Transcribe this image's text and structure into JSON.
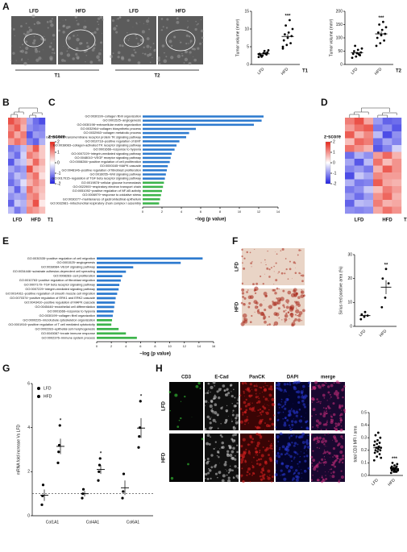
{
  "panel_labels": [
    "A",
    "B",
    "C",
    "D",
    "E",
    "F",
    "G",
    "H"
  ],
  "micrographs": {
    "A_T1": {
      "labels": [
        "LFD",
        "HFD"
      ],
      "caption": "T1"
    },
    "A_T2": {
      "labels": [
        "LFD",
        "HFD"
      ],
      "caption": "T2"
    },
    "F": {
      "labels": [
        "LFD",
        "HFD"
      ]
    },
    "H": {
      "columns": [
        "CD3",
        "E-Cad",
        "PanCK",
        "DAPI",
        "merge"
      ],
      "rows": [
        "LFD",
        "HFD"
      ]
    }
  },
  "chart_data": [
    {
      "type": "dot",
      "ylabel": "Tumor volume (mm³)",
      "categories": [
        "LFD",
        "HFD"
      ],
      "caption": "T1",
      "significance": "***",
      "points": [
        [
          2.1,
          2.5,
          2.8,
          3.0,
          3.2,
          3.4,
          2.6,
          3.8,
          4.0,
          2.2,
          3.1,
          2.9
        ],
        [
          4.5,
          5.5,
          6.0,
          6.8,
          7.5,
          8.0,
          8.5,
          9.0,
          10.0,
          11.0,
          12.5,
          5.0
        ]
      ],
      "values": [
        3.0,
        7.9
      ],
      "errors": [
        0.2,
        0.7
      ],
      "ylim": [
        0,
        15
      ],
      "yticks": [
        0,
        5,
        10,
        15
      ],
      "color": "#000000"
    },
    {
      "type": "dot",
      "ylabel": "Tumor volume (mm³)",
      "categories": [
        "LFD",
        "HFD"
      ],
      "caption": "T2",
      "significance": "***",
      "points": [
        [
          25,
          30,
          35,
          40,
          42,
          45,
          50,
          55,
          60,
          70,
          38
        ],
        [
          70,
          80,
          90,
          100,
          110,
          115,
          120,
          130,
          140,
          150,
          160
        ]
      ],
      "values": [
        44.5,
        115
      ],
      "errors": [
        4,
        9
      ],
      "ylim": [
        0,
        200
      ],
      "yticks": [
        0,
        50,
        100,
        150,
        200
      ],
      "color": "#000000"
    },
    {
      "type": "heatmap",
      "group_labels": [
        "LFD",
        "HFD"
      ],
      "caption": "T1",
      "colormap": [
        "#2020e0",
        "#ffffff",
        "#e6261a"
      ],
      "colorbar": {
        "label": "z-score",
        "lim": [
          -2,
          2
        ],
        "ticks": [
          2,
          1,
          0,
          -1,
          -2
        ]
      },
      "values": [
        [
          1.6,
          1.2,
          0.9,
          -0.8,
          -1.3,
          -1.6
        ],
        [
          1.1,
          1.5,
          0.7,
          -1.0,
          -1.2,
          -1.1
        ],
        [
          1.4,
          0.8,
          1.2,
          -1.5,
          -0.9,
          -1.0
        ],
        [
          0.9,
          1.3,
          1.0,
          -1.1,
          -1.4,
          -0.7
        ],
        [
          -1.2,
          -1.0,
          -0.6,
          0.8,
          1.5,
          0.5
        ],
        [
          -0.9,
          -1.3,
          -0.4,
          1.2,
          0.9,
          0.5
        ],
        [
          -1.5,
          -0.7,
          -0.5,
          0.6,
          1.4,
          0.7
        ],
        [
          -0.8,
          -1.1,
          -0.9,
          1.6,
          0.7,
          0.5
        ],
        [
          -1.1,
          -0.6,
          -0.8,
          0.9,
          1.3,
          0.3
        ],
        [
          -1.3,
          -0.9,
          -0.3,
          0.7,
          1.1,
          0.7
        ],
        [
          -0.7,
          -1.4,
          -0.6,
          1.3,
          0.8,
          0.6
        ],
        [
          -1.0,
          -0.8,
          -0.9,
          1.0,
          1.2,
          0.5
        ],
        [
          -1.4,
          -0.5,
          -0.7,
          0.8,
          1.6,
          0.2
        ],
        [
          -0.6,
          -1.2,
          -0.8,
          1.1,
          0.9,
          0.6
        ]
      ]
    },
    {
      "type": "hbar",
      "xlabel": "−log (p value)",
      "xlim": [
        0,
        14
      ],
      "xticks": [
        0,
        2,
        4,
        6,
        8,
        10,
        12,
        14
      ],
      "categories": [
        "GO:0030199~collagen fibril organization",
        "GO:0001525~angiogenesis",
        "GO:0030198~extracellular matrix organization",
        "GO:0032964~collagen biosynthetic process",
        "GO:0032963~collagen metabolic process",
        "GO:0007169~transmembrane receptor protein TK signaling pathway",
        "GO:0010718~positive regulation of EMT",
        "GO:0038083~collagen-activated TK receptor signaling pathway",
        "GO:0001666~response to hypoxia",
        "GO:0007229~integrin-mediated signaling pathway",
        "GO:0048010~VEGF receptor signaling pathway",
        "GO:0008284~positive regulation of cell proliferation",
        "GO:0000165~MAPK cascade",
        "GO:0048146~positive regulation of fibroblast proliferation",
        "GO:0016055~Wnt signaling pathway",
        "GO:0017015~regulation of TGF beta receptor signaling pathway",
        "GO:0019878~cellular glucose homeostasis",
        "GO:0022900~respiratory electron transport chain",
        "GO:0051092~positive regulation of NF-kB activity",
        "GO:0006979~response to oxidative stress",
        "GO:0030277~maintenance of gastrointestinal epithelium",
        "GO:0032981~mitochondrial respiratory chain complex I assembly"
      ],
      "values": [
        12.5,
        12.3,
        11.5,
        5.5,
        4.8,
        4.5,
        3.8,
        3.5,
        3.3,
        3.0,
        2.9,
        2.8,
        2.6,
        2.5,
        2.4,
        2.3,
        2.2,
        2.1,
        2.0,
        1.9,
        1.8,
        1.7
      ],
      "colors": [
        "#2e7bcf",
        "#2e7bcf",
        "#2e7bcf",
        "#2e7bcf",
        "#2e7bcf",
        "#2e7bcf",
        "#2e7bcf",
        "#2e7bcf",
        "#2e7bcf",
        "#2e7bcf",
        "#2e7bcf",
        "#2e7bcf",
        "#2e7bcf",
        "#2e7bcf",
        "#2e7bcf",
        "#2e7bcf",
        "#3cb44b",
        "#3cb44b",
        "#3cb44b",
        "#3cb44b",
        "#3cb44b",
        "#3cb44b"
      ]
    },
    {
      "type": "heatmap",
      "group_labels": [
        "LFD",
        "HFD"
      ],
      "caption": "T2",
      "colormap": [
        "#2020e0",
        "#ffffff",
        "#e6261a"
      ],
      "colorbar": {
        "label": "z-score",
        "lim": [
          -2,
          2
        ],
        "ticks": [
          2,
          1,
          0,
          -1,
          -2
        ]
      },
      "values": [
        [
          1.2,
          1.6,
          0.8,
          -0.9,
          -1.4,
          -1.3
        ],
        [
          0.9,
          1.3,
          1.5,
          -1.2,
          -1.0,
          -1.5
        ],
        [
          1.5,
          0.7,
          1.1,
          -0.6,
          -1.6,
          -1.0
        ],
        [
          0.6,
          1.4,
          1.2,
          -1.3,
          -0.8,
          -1.1
        ],
        [
          1.3,
          1.0,
          0.7,
          -1.5,
          -1.1,
          -0.4
        ],
        [
          -1.3,
          -0.7,
          -1.0,
          0.9,
          1.4,
          0.7
        ],
        [
          -0.8,
          -1.5,
          -0.6,
          1.3,
          0.6,
          1.0
        ],
        [
          -1.1,
          -0.9,
          -1.2,
          0.7,
          1.5,
          1.0
        ],
        [
          -1.6,
          -0.5,
          -0.8,
          1.1,
          0.9,
          0.9
        ],
        [
          -0.7,
          -1.2,
          -1.1,
          1.5,
          0.8,
          0.7
        ],
        [
          -1.2,
          -1.0,
          -0.5,
          0.6,
          1.2,
          0.9
        ],
        [
          -0.9,
          -1.3,
          -0.9,
          1.0,
          1.4,
          0.7
        ],
        [
          -1.4,
          -0.6,
          -0.7,
          1.2,
          0.7,
          0.8
        ],
        [
          -1.0,
          -1.1,
          -1.0,
          0.8,
          1.3,
          1.0
        ]
      ]
    },
    {
      "type": "hbar",
      "xlabel": "−log (p value)",
      "xlim": [
        0,
        16
      ],
      "xticks": [
        0,
        2,
        4,
        6,
        8,
        10,
        12,
        14,
        16
      ],
      "categories": [
        "GO:0030335~positive regulation of cell migration",
        "GO:0001525~angiogenesis",
        "GO:0038084~VEGF signaling pathway",
        "GO:0034446~substrate adhesion-dependent cell spreading",
        "GO:0008283~cell proliferation",
        "GO:0010763~positive regulation of fibroblast migration",
        "GO:0007179~TGF beta receptor signaling pathway",
        "GO:0007229~integrin-mediated signaling pathway",
        "GO:0014911~positive regulation of smooth muscle cell migration",
        "GO:0070374~positive regulation of ERK1 and ERK2 cascade",
        "GO:0043410~positive regulation of MAPK cascade",
        "GO:0045446~endothelial cell differentiation",
        "GO:0001666~response to hypoxia",
        "GO:0030199~collagen fibril organization",
        "GO:0000226~microtubule cytoskeleton organization",
        "GO:0001916~positive regulation of T cell mediated cytotoxicity",
        "GO:0002283~epithelial cell morphogenesis",
        "GO:0045087~innate immune response",
        "GO:0002376~immune system process"
      ],
      "values": [
        14.5,
        11.5,
        5.0,
        4.0,
        3.5,
        3.3,
        3.1,
        3.0,
        2.8,
        2.6,
        2.5,
        2.4,
        2.3,
        2.2,
        2.1,
        2.0,
        3.0,
        4.0,
        5.5
      ],
      "colors": [
        "#2e7bcf",
        "#2e7bcf",
        "#2e7bcf",
        "#2e7bcf",
        "#2e7bcf",
        "#2e7bcf",
        "#2e7bcf",
        "#2e7bcf",
        "#2e7bcf",
        "#2e7bcf",
        "#2e7bcf",
        "#2e7bcf",
        "#2e7bcf",
        "#2e7bcf",
        "#3cb44b",
        "#3cb44b",
        "#3cb44b",
        "#3cb44b",
        "#3cb44b"
      ]
    },
    {
      "type": "dot",
      "ylabel": "Sirius red positive area (%)",
      "categories": [
        "LFD",
        "HFD"
      ],
      "significance": "**",
      "points": [
        [
          3,
          4,
          4.5,
          5,
          6
        ],
        [
          8,
          12,
          18,
          20,
          24
        ]
      ],
      "values": [
        4.5,
        16.4
      ],
      "errors": [
        0.5,
        2.9
      ],
      "ylim": [
        0,
        30
      ],
      "yticks": [
        0,
        10,
        20,
        30
      ],
      "color": "#000000"
    },
    {
      "type": "grouped_dot",
      "ylabel": "mRNA fold increase Vs LFD",
      "categories": [
        "Col1A1",
        "Col4A1",
        "Col6A1"
      ],
      "significance": "*",
      "reference_line": 1,
      "ylim": [
        0,
        6
      ],
      "yticks": [
        0,
        2,
        4,
        6
      ],
      "legend": "top-left",
      "series": [
        {
          "name": "LFD",
          "color": "#000000",
          "points": [
            [
              0.5,
              0.9,
              1.4
            ],
            [
              0.8,
              1.0,
              1.2
            ],
            [
              0.8,
              1.1,
              1.9
            ]
          ],
          "values": [
            0.93,
            1.0,
            1.27
          ],
          "errors": [
            0.26,
            0.12,
            0.33
          ]
        },
        {
          "name": "HFD",
          "color": "#000000",
          "points": [
            [
              2.4,
              2.9,
              3.2,
              4.1
            ],
            [
              1.6,
              2.0,
              2.3,
              2.6
            ],
            [
              3.1,
              3.6,
              4.0,
              5.2
            ]
          ],
          "values": [
            3.15,
            2.1,
            3.98
          ],
          "errors": [
            0.35,
            0.2,
            0.45
          ]
        }
      ]
    },
    {
      "type": "dot",
      "ylabel": "total CD3 MFI / area",
      "categories": [
        "LFD",
        "HFD"
      ],
      "significance": "***",
      "points": [
        [
          0.12,
          0.15,
          0.17,
          0.18,
          0.19,
          0.2,
          0.2,
          0.21,
          0.22,
          0.22,
          0.23,
          0.24,
          0.25,
          0.26,
          0.27,
          0.28,
          0.3,
          0.32,
          0.34,
          0.14
        ],
        [
          0.02,
          0.03,
          0.03,
          0.04,
          0.04,
          0.04,
          0.05,
          0.05,
          0.05,
          0.05,
          0.06,
          0.06,
          0.06,
          0.07,
          0.07,
          0.08,
          0.09,
          0.1,
          0.03,
          0.04
        ]
      ],
      "values": [
        0.22,
        0.05
      ],
      "errors": [
        0.013,
        0.005
      ],
      "ylim": [
        0,
        0.5
      ],
      "yticks": [
        {
          "value": 0,
          "label": "0.0"
        },
        0.1,
        0.2,
        0.3,
        0.4,
        0.5
      ],
      "color": "#000000"
    }
  ]
}
